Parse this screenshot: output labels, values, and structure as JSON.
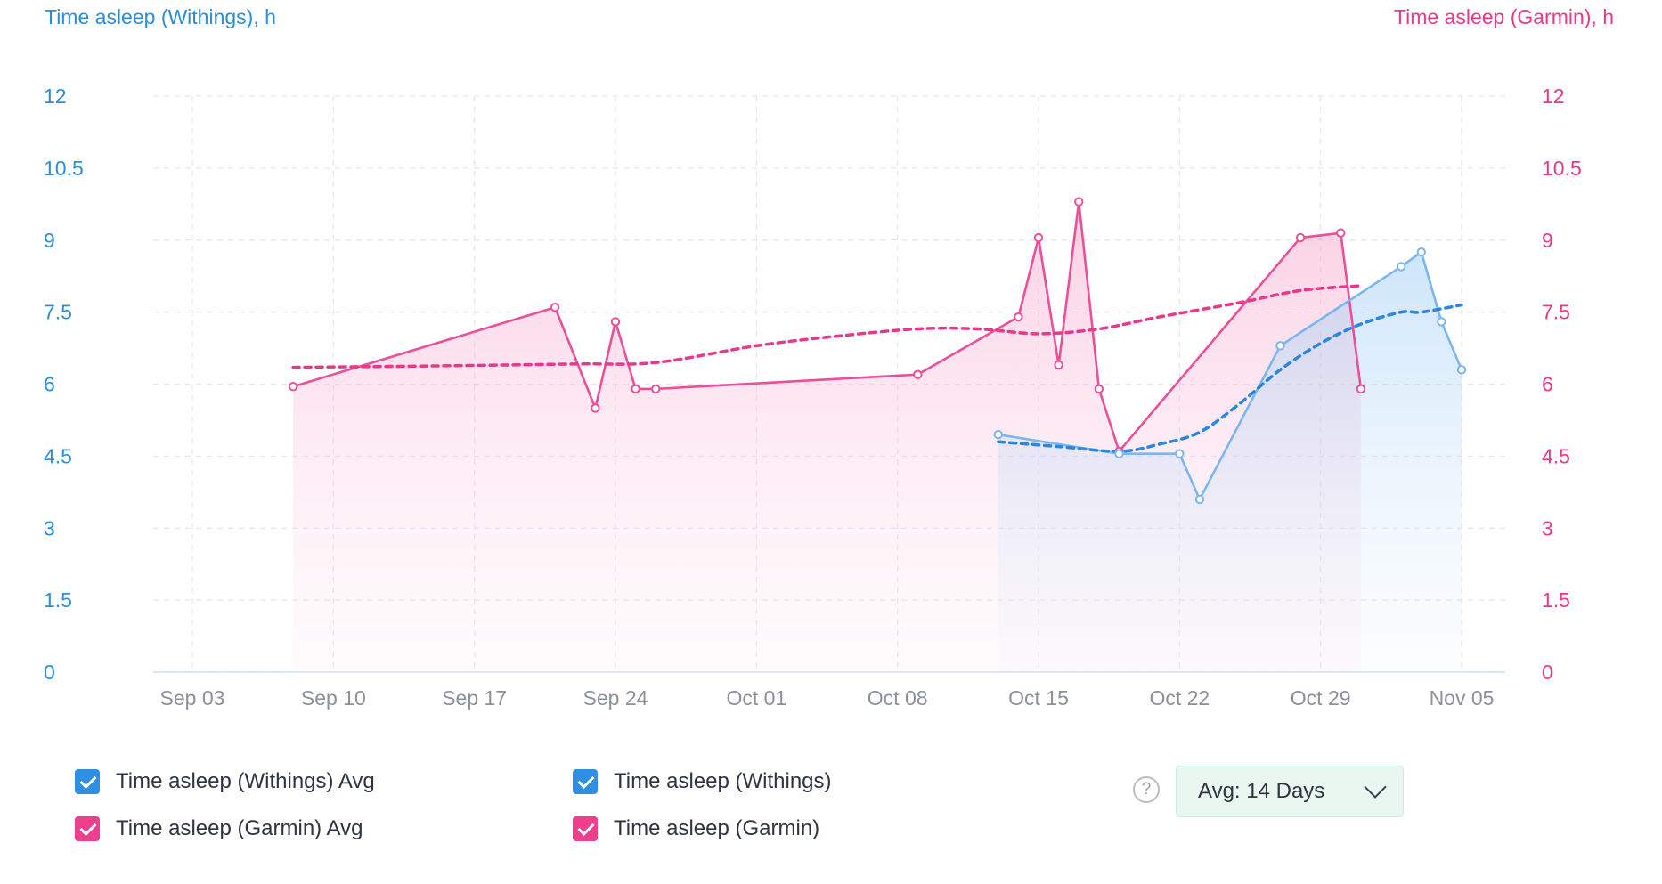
{
  "chart_data": {
    "type": "line",
    "y_left_label": "Time asleep (Withings), h",
    "y_right_label": "Time asleep (Garmin), h",
    "y_ticks": [
      "0",
      "1.5",
      "3",
      "4.5",
      "6",
      "7.5",
      "9",
      "10.5",
      "12"
    ],
    "ylim": [
      0,
      12
    ],
    "x_ticks": [
      "Sep 03",
      "Sep 10",
      "Sep 17",
      "Sep 24",
      "Oct 01",
      "Oct 08",
      "Oct 15",
      "Oct 22",
      "Oct 29",
      "Nov 05"
    ],
    "x_range": [
      "2023-09-03",
      "2023-11-05"
    ],
    "grid": true,
    "series": [
      {
        "name": "Time asleep (Garmin)",
        "axis": "right",
        "color": "#ec4f9a",
        "style": "solid",
        "markers": true,
        "points": [
          [
            "2023-09-08",
            5.95
          ],
          [
            "2023-09-21",
            7.6
          ],
          [
            "2023-09-23",
            5.5
          ],
          [
            "2023-09-24",
            7.3
          ],
          [
            "2023-09-25",
            5.9
          ],
          [
            "2023-09-26",
            5.9
          ],
          [
            "2023-10-09",
            6.2
          ],
          [
            "2023-10-14",
            7.4
          ],
          [
            "2023-10-15",
            9.05
          ],
          [
            "2023-10-16",
            6.4
          ],
          [
            "2023-10-17",
            9.8
          ],
          [
            "2023-10-18",
            5.9
          ],
          [
            "2023-10-19",
            4.6
          ],
          [
            "2023-10-28",
            9.05
          ],
          [
            "2023-10-30",
            9.15
          ],
          [
            "2023-10-31",
            5.9
          ]
        ]
      },
      {
        "name": "Time asleep (Garmin) Avg",
        "axis": "right",
        "color": "#e8388c",
        "style": "dashed",
        "points": [
          [
            "2023-09-08",
            6.35
          ],
          [
            "2023-09-15",
            6.38
          ],
          [
            "2023-09-22",
            6.42
          ],
          [
            "2023-09-26",
            6.45
          ],
          [
            "2023-10-01",
            6.8
          ],
          [
            "2023-10-05",
            7.0
          ],
          [
            "2023-10-09",
            7.15
          ],
          [
            "2023-10-12",
            7.15
          ],
          [
            "2023-10-15",
            7.05
          ],
          [
            "2023-10-18",
            7.15
          ],
          [
            "2023-10-21",
            7.4
          ],
          [
            "2023-10-25",
            7.7
          ],
          [
            "2023-10-28",
            7.95
          ],
          [
            "2023-10-31",
            8.05
          ]
        ]
      },
      {
        "name": "Time asleep (Withings)",
        "axis": "left",
        "color": "#7cb6f0",
        "style": "solid",
        "markers": true,
        "points": [
          [
            "2023-10-13",
            4.95
          ],
          [
            "2023-10-19",
            4.55
          ],
          [
            "2023-10-22",
            4.55
          ],
          [
            "2023-10-23",
            3.6
          ],
          [
            "2023-10-27",
            6.8
          ],
          [
            "2023-11-02",
            8.45
          ],
          [
            "2023-11-03",
            8.75
          ],
          [
            "2023-11-04",
            7.3
          ],
          [
            "2023-11-05",
            6.3
          ]
        ]
      },
      {
        "name": "Time asleep (Withings) Avg",
        "axis": "left",
        "color": "#2b86dd",
        "style": "dashed",
        "points": [
          [
            "2023-10-13",
            4.8
          ],
          [
            "2023-10-16",
            4.7
          ],
          [
            "2023-10-19",
            4.6
          ],
          [
            "2023-10-21",
            4.75
          ],
          [
            "2023-10-23",
            5.0
          ],
          [
            "2023-10-25",
            5.6
          ],
          [
            "2023-10-27",
            6.3
          ],
          [
            "2023-10-29",
            6.85
          ],
          [
            "2023-10-31",
            7.25
          ],
          [
            "2023-11-02",
            7.5
          ],
          [
            "2023-11-03",
            7.5
          ],
          [
            "2023-11-05",
            7.65
          ]
        ]
      }
    ]
  },
  "legend": {
    "withings_avg": "Time asleep (Withings) Avg",
    "withings": "Time asleep (Withings)",
    "garmin_avg": "Time asleep (Garmin) Avg",
    "garmin": "Time asleep (Garmin)"
  },
  "controls": {
    "help": "?",
    "avg_label": "Avg: 14 Days"
  }
}
